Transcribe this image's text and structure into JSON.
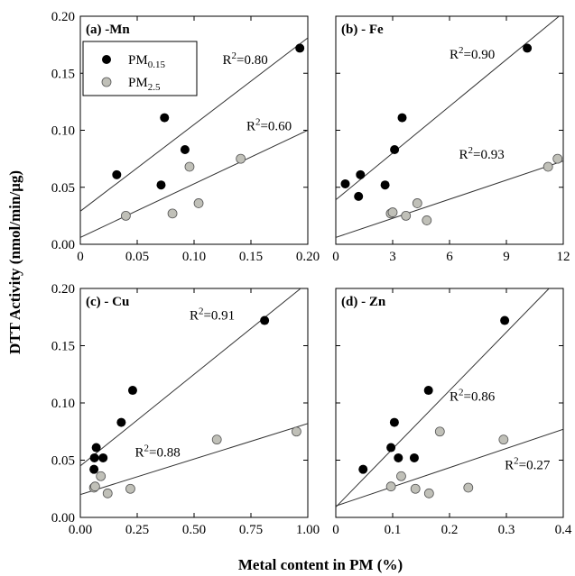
{
  "figure": {
    "ylabel": "DTT Activity (nmol/min/µg)",
    "xlabel": "Metal content in PM (%)"
  },
  "legend": {
    "entries": [
      {
        "base": "PM",
        "sub": "0.15",
        "color": "#000000"
      },
      {
        "base": "PM",
        "sub": "2.5",
        "color": "#c0c0b8"
      }
    ]
  },
  "colors": {
    "pm015": "#000000",
    "pm25": "#c0c0b8",
    "fit_line": "#333333",
    "axis": "#000000"
  },
  "chart_data": [
    {
      "type": "scatter",
      "title": "(a) -Mn",
      "xlim": [
        0,
        0.2
      ],
      "ylim": [
        0,
        0.2
      ],
      "xticks": [
        0,
        0.05,
        0.1,
        0.15,
        0.2
      ],
      "xtick_labels": [
        "0",
        "0.05",
        "0.10",
        "0.15",
        "0.20"
      ],
      "yticks": [
        0,
        0.05,
        0.1,
        0.15,
        0.2
      ],
      "ytick_labels": [
        "0.00",
        "0.05",
        "0.10",
        "0.15",
        "0.20"
      ],
      "series": [
        {
          "name": "PM0.15",
          "points": [
            [
              0.032,
              0.061
            ],
            [
              0.071,
              0.052
            ],
            [
              0.074,
              0.111
            ],
            [
              0.092,
              0.083
            ],
            [
              0.193,
              0.172
            ]
          ],
          "fit": {
            "x": [
              0,
              0.2
            ],
            "y": [
              0.029,
              0.181
            ]
          },
          "r2_label": "R2=0.80",
          "r2_at": [
            0.125,
            0.158
          ]
        },
        {
          "name": "PM2.5",
          "points": [
            [
              0.04,
              0.025
            ],
            [
              0.081,
              0.027
            ],
            [
              0.096,
              0.068
            ],
            [
              0.104,
              0.036
            ],
            [
              0.141,
              0.075
            ]
          ],
          "fit": {
            "x": [
              0,
              0.2
            ],
            "y": [
              0.006,
              0.1
            ]
          },
          "r2_label": "R2=0.60",
          "r2_at": [
            0.146,
            0.1
          ]
        }
      ]
    },
    {
      "type": "scatter",
      "title": "(b) - Fe",
      "xlim": [
        0,
        12
      ],
      "ylim": [
        0,
        0.2
      ],
      "xticks": [
        0,
        3,
        6,
        9,
        12
      ],
      "xtick_labels": [
        "0",
        "3",
        "6",
        "9",
        "12"
      ],
      "yticks": [
        0,
        0.05,
        0.1,
        0.15,
        0.2
      ],
      "series": [
        {
          "name": "PM0.15",
          "points": [
            [
              0.5,
              0.053
            ],
            [
              1.2,
              0.042
            ],
            [
              1.3,
              0.061
            ],
            [
              2.6,
              0.052
            ],
            [
              3.1,
              0.083
            ],
            [
              3.5,
              0.111
            ],
            [
              10.1,
              0.172
            ]
          ],
          "fit": {
            "x": [
              0,
              12
            ],
            "y": [
              0.039,
              0.203
            ]
          },
          "r2_label": "R2=0.90",
          "r2_at": [
            6.0,
            0.163
          ]
        },
        {
          "name": "PM2.5",
          "points": [
            [
              2.9,
              0.027
            ],
            [
              3.0,
              0.028
            ],
            [
              3.7,
              0.025
            ],
            [
              4.3,
              0.036
            ],
            [
              4.8,
              0.021
            ],
            [
              11.2,
              0.068
            ],
            [
              11.7,
              0.075
            ]
          ],
          "fit": {
            "x": [
              0,
              12
            ],
            "y": [
              0.006,
              0.073
            ]
          },
          "r2_label": "R2=0.93",
          "r2_at": [
            6.5,
            0.075
          ]
        }
      ]
    },
    {
      "type": "scatter",
      "title": "(c) - Cu",
      "xlim": [
        0,
        1.0
      ],
      "ylim": [
        0,
        0.2
      ],
      "xticks": [
        0,
        0.25,
        0.5,
        0.75,
        1.0
      ],
      "xtick_labels": [
        "0.00",
        "0.25",
        "0.50",
        "0.75",
        "1.00"
      ],
      "yticks": [
        0,
        0.05,
        0.1,
        0.15,
        0.2
      ],
      "ytick_labels": [
        "0.00",
        "0.05",
        "0.10",
        "0.15",
        "0.20"
      ],
      "series": [
        {
          "name": "PM0.15",
          "points": [
            [
              0.06,
              0.042
            ],
            [
              0.062,
              0.052
            ],
            [
              0.07,
              0.061
            ],
            [
              0.1,
              0.052
            ],
            [
              0.18,
              0.083
            ],
            [
              0.23,
              0.111
            ],
            [
              0.81,
              0.172
            ]
          ],
          "fit": {
            "x": [
              0,
              1.0
            ],
            "y": [
              0.045,
              0.205
            ]
          },
          "r2_label": "R2=0.91",
          "r2_at": [
            0.48,
            0.173
          ]
        },
        {
          "name": "PM2.5",
          "points": [
            [
              0.06,
              0.026
            ],
            [
              0.065,
              0.027
            ],
            [
              0.09,
              0.036
            ],
            [
              0.12,
              0.021
            ],
            [
              0.22,
              0.025
            ],
            [
              0.6,
              0.068
            ],
            [
              0.95,
              0.075
            ]
          ],
          "fit": {
            "x": [
              0,
              1.0
            ],
            "y": [
              0.02,
              0.082
            ]
          },
          "r2_label": "R2=0.88",
          "r2_at": [
            0.24,
            0.053
          ]
        }
      ]
    },
    {
      "type": "scatter",
      "title": "(d) - Zn",
      "xlim": [
        0,
        0.4
      ],
      "ylim": [
        0,
        0.2
      ],
      "xticks": [
        0,
        0.1,
        0.2,
        0.3,
        0.4
      ],
      "xtick_labels": [
        "0",
        "0.1",
        "0.2",
        "0.3",
        "0.4"
      ],
      "yticks": [
        0,
        0.05,
        0.1,
        0.15,
        0.2
      ],
      "series": [
        {
          "name": "PM0.15",
          "points": [
            [
              0.048,
              0.042
            ],
            [
              0.097,
              0.061
            ],
            [
              0.103,
              0.083
            ],
            [
              0.11,
              0.052
            ],
            [
              0.138,
              0.052
            ],
            [
              0.163,
              0.111
            ],
            [
              0.297,
              0.172
            ]
          ],
          "fit": {
            "x": [
              0,
              0.375
            ],
            "y": [
              0.009,
              0.2
            ]
          },
          "r2_label": "R2=0.86",
          "r2_at": [
            0.2,
            0.102
          ]
        },
        {
          "name": "PM2.5",
          "points": [
            [
              0.097,
              0.027
            ],
            [
              0.115,
              0.036
            ],
            [
              0.14,
              0.025
            ],
            [
              0.164,
              0.021
            ],
            [
              0.183,
              0.075
            ],
            [
              0.233,
              0.026
            ],
            [
              0.295,
              0.068
            ]
          ],
          "fit": {
            "x": [
              0,
              0.4
            ],
            "y": [
              0.01,
              0.077
            ]
          },
          "r2_label": "R2=0.27",
          "r2_at": [
            0.297,
            0.042
          ]
        }
      ]
    }
  ]
}
